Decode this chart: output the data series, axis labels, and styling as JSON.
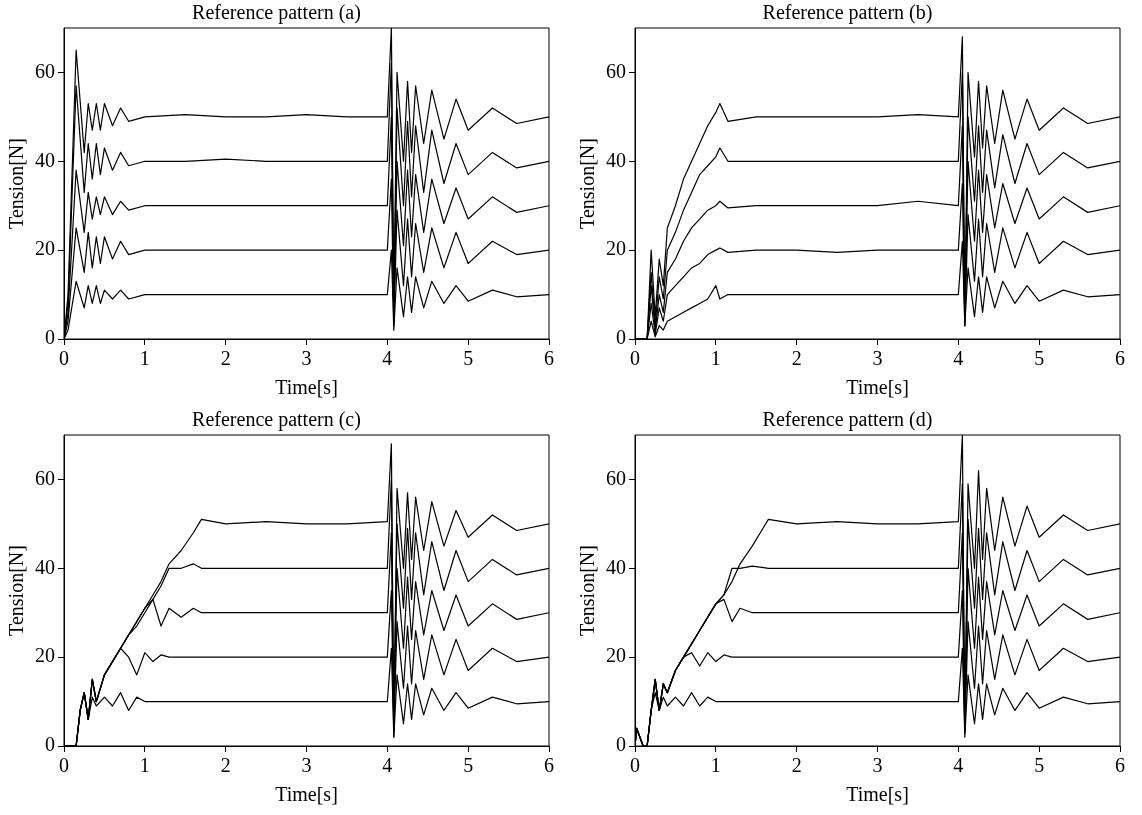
{
  "chart_data": [
    {
      "type": "line",
      "title": "Reference pattern (a)",
      "xlabel": "Time[s]",
      "ylabel": "Tension[N]",
      "xlim": [
        0,
        6
      ],
      "xticks": [
        0,
        1,
        2,
        3,
        4,
        5,
        6
      ],
      "ylim": [
        0,
        70
      ],
      "yticks": [
        0,
        20,
        40,
        60
      ],
      "x": [
        0,
        0.05,
        0.15,
        0.25,
        0.3,
        0.35,
        0.4,
        0.45,
        0.5,
        0.6,
        0.7,
        0.8,
        1.0,
        1.5,
        2.0,
        2.5,
        3.0,
        3.5,
        4.0,
        4.05,
        4.08,
        4.12,
        4.2,
        4.25,
        4.3,
        4.35,
        4.45,
        4.55,
        4.7,
        4.85,
        5.0,
        5.3,
        5.6,
        6.0
      ],
      "series": [
        {
          "color": "#000000",
          "values": [
            0,
            10,
            65,
            42,
            53,
            47,
            53,
            47,
            53,
            48,
            52,
            49,
            50,
            50.5,
            50,
            50,
            50.5,
            50,
            50,
            70,
            8,
            60,
            40,
            58,
            42,
            57,
            44,
            56,
            45,
            54,
            47,
            52,
            48.5,
            50
          ]
        },
        {
          "color": "#000000",
          "values": [
            0,
            8,
            57,
            33,
            44,
            36,
            44,
            37,
            43,
            38,
            42,
            39,
            40,
            40,
            40.5,
            40,
            40,
            40,
            40,
            62,
            5,
            52,
            30,
            49,
            32,
            48,
            33,
            47,
            35,
            44,
            37,
            42,
            38.5,
            40
          ]
        },
        {
          "color": "#000000",
          "values": [
            0,
            6,
            38,
            24,
            33,
            27,
            32,
            28,
            32,
            28,
            31,
            29,
            30,
            30,
            30,
            30,
            30,
            30,
            30,
            50,
            4,
            40,
            21,
            38,
            23,
            37,
            24,
            36,
            26,
            34,
            27,
            32,
            28.5,
            30
          ]
        },
        {
          "color": "#000000",
          "values": [
            0,
            4,
            25,
            15,
            24,
            16,
            23,
            17,
            23,
            18,
            22,
            19,
            20,
            20,
            20,
            20,
            20,
            20,
            20,
            36,
            3,
            29,
            12,
            27,
            14,
            26,
            15,
            25,
            16,
            24,
            17,
            22,
            19,
            20
          ]
        },
        {
          "color": "#000000",
          "values": [
            0,
            2,
            13,
            7,
            12,
            8,
            12,
            8,
            11,
            9,
            11,
            9,
            10,
            10,
            10,
            10,
            10,
            10,
            10,
            20,
            2,
            16,
            5,
            14,
            6,
            14,
            7,
            13,
            8,
            12,
            8.5,
            11,
            9.5,
            10
          ]
        }
      ]
    },
    {
      "type": "line",
      "title": "Reference pattern (b)",
      "xlabel": "Time[s]",
      "ylabel": "Tension[N]",
      "xlim": [
        0,
        6
      ],
      "xticks": [
        0,
        1,
        2,
        3,
        4,
        5,
        6
      ],
      "ylim": [
        0,
        70
      ],
      "yticks": [
        0,
        20,
        40,
        60
      ],
      "x": [
        0,
        0.15,
        0.2,
        0.25,
        0.3,
        0.35,
        0.4,
        0.5,
        0.6,
        0.7,
        0.8,
        0.9,
        1.0,
        1.05,
        1.15,
        1.5,
        2.0,
        2.5,
        3.0,
        3.5,
        4.0,
        4.05,
        4.08,
        4.12,
        4.2,
        4.25,
        4.3,
        4.35,
        4.45,
        4.55,
        4.7,
        4.85,
        5.0,
        5.3,
        5.6,
        6.0
      ],
      "series": [
        {
          "color": "#000000",
          "values": [
            0,
            0,
            20,
            5,
            18,
            12,
            25,
            30,
            36,
            40,
            44,
            48,
            51,
            53,
            49,
            50,
            50,
            50,
            50,
            50.5,
            50,
            68,
            3,
            60,
            41,
            58,
            43,
            57,
            44,
            56,
            45,
            54,
            47,
            52,
            48.5,
            50
          ]
        },
        {
          "color": "#000000",
          "values": [
            0,
            0,
            15,
            3,
            14,
            9,
            20,
            24,
            29,
            33,
            37,
            39,
            41,
            43,
            40,
            40,
            40,
            40,
            40,
            40,
            40,
            60,
            5,
            50,
            31,
            48,
            33,
            47,
            34,
            46,
            35,
            44,
            37,
            42,
            38.5,
            40
          ]
        },
        {
          "color": "#000000",
          "values": [
            0,
            0,
            12,
            2,
            10,
            6,
            15,
            18,
            22,
            25,
            27,
            29,
            30,
            31,
            29.5,
            30,
            30,
            30,
            30,
            31,
            30,
            48,
            4,
            40,
            22,
            38,
            24,
            37,
            25,
            35,
            26,
            34,
            27,
            32,
            28.5,
            30
          ]
        },
        {
          "color": "#000000",
          "values": [
            0,
            0,
            8,
            1,
            7,
            4,
            10,
            12,
            14,
            16,
            17,
            19,
            20,
            20.5,
            19.5,
            20,
            20,
            19.5,
            20,
            20,
            20,
            35,
            3,
            28,
            13,
            27,
            14,
            26,
            15,
            25,
            16,
            24,
            17,
            22,
            19,
            20
          ]
        },
        {
          "color": "#000000",
          "values": [
            0,
            0,
            4,
            0.5,
            3,
            2,
            4,
            5,
            6,
            7,
            8,
            9,
            12,
            9,
            10,
            10,
            10,
            10,
            10,
            10,
            10,
            22,
            3,
            16,
            5,
            14,
            6,
            14,
            7,
            13,
            8,
            12,
            8.5,
            11,
            9.5,
            10
          ]
        }
      ]
    },
    {
      "type": "line",
      "title": "Reference pattern (c)",
      "xlabel": "Time[s]",
      "ylabel": "Tension[N]",
      "xlim": [
        0,
        6
      ],
      "xticks": [
        0,
        1,
        2,
        3,
        4,
        5,
        6
      ],
      "ylim": [
        0,
        70
      ],
      "yticks": [
        0,
        20,
        40,
        60
      ],
      "x": [
        0,
        0.1,
        0.15,
        0.2,
        0.25,
        0.3,
        0.35,
        0.4,
        0.5,
        0.6,
        0.7,
        0.8,
        0.9,
        1.0,
        1.1,
        1.2,
        1.3,
        1.45,
        1.6,
        1.7,
        2.0,
        2.5,
        3.0,
        3.5,
        4.0,
        4.05,
        4.08,
        4.12,
        4.2,
        4.25,
        4.3,
        4.35,
        4.45,
        4.55,
        4.7,
        4.85,
        5.0,
        5.3,
        5.6,
        6.0
      ],
      "series": [
        {
          "color": "#000000",
          "values": [
            0,
            0,
            0,
            8,
            12,
            6,
            15,
            10,
            16,
            19,
            22,
            25,
            28,
            31,
            34,
            37,
            41,
            44,
            48,
            51,
            50,
            50.5,
            50,
            50,
            50.5,
            68,
            2,
            58,
            40,
            57,
            42,
            56,
            44,
            55,
            45,
            53,
            47,
            52,
            48.5,
            50
          ]
        },
        {
          "color": "#000000",
          "values": [
            0,
            0,
            0,
            8,
            12,
            6,
            15,
            10,
            16,
            19,
            22,
            25,
            28,
            31,
            33,
            36,
            40,
            40,
            41,
            40,
            40,
            40,
            40,
            40,
            40,
            60,
            5,
            50,
            31,
            49,
            33,
            48,
            34,
            46,
            35,
            44,
            37,
            42,
            38.5,
            40
          ]
        },
        {
          "color": "#000000",
          "values": [
            0,
            0,
            0,
            8,
            12,
            6,
            15,
            10,
            16,
            19,
            22,
            25,
            27,
            30,
            33,
            27,
            31,
            29,
            31,
            30,
            30,
            30,
            30,
            30,
            30,
            48,
            4,
            40,
            22,
            38,
            24,
            37,
            25,
            35,
            26,
            34,
            27,
            32,
            28.5,
            30
          ]
        },
        {
          "color": "#000000",
          "values": [
            0,
            0,
            0,
            8,
            12,
            6,
            15,
            10,
            16,
            19,
            22,
            20,
            16,
            21,
            19,
            20.5,
            20,
            20,
            20,
            20,
            20,
            20,
            20,
            20,
            20,
            35,
            3,
            28,
            13,
            27,
            14,
            26,
            15,
            25,
            16,
            24,
            17,
            22,
            19,
            20
          ]
        },
        {
          "color": "#000000",
          "values": [
            0,
            0,
            0,
            8,
            12,
            6,
            11,
            9,
            11,
            9,
            12,
            8,
            11,
            10,
            10,
            10,
            10,
            10,
            10,
            10,
            10,
            10,
            10,
            10,
            10,
            22,
            2,
            16,
            5,
            14,
            6,
            14,
            7,
            13,
            8,
            12,
            8.5,
            11,
            9.5,
            10
          ]
        }
      ]
    },
    {
      "type": "line",
      "title": "Reference pattern (d)",
      "xlabel": "Time[s]",
      "ylabel": "Tension[N]",
      "xlim": [
        0,
        6
      ],
      "xticks": [
        0,
        1,
        2,
        3,
        4,
        5,
        6
      ],
      "ylim": [
        0,
        70
      ],
      "yticks": [
        0,
        20,
        40,
        60
      ],
      "x": [
        0,
        0.02,
        0.1,
        0.15,
        0.2,
        0.25,
        0.3,
        0.35,
        0.4,
        0.5,
        0.6,
        0.7,
        0.8,
        0.9,
        1.0,
        1.1,
        1.2,
        1.3,
        1.45,
        1.65,
        2.0,
        2.5,
        3.0,
        3.5,
        4.0,
        4.05,
        4.08,
        4.12,
        4.2,
        4.25,
        4.3,
        4.35,
        4.45,
        4.55,
        4.7,
        4.85,
        5.0,
        5.3,
        5.6,
        6.0
      ],
      "series": [
        {
          "color": "#000000",
          "values": [
            0,
            4,
            0,
            0,
            8,
            15,
            8,
            14,
            12,
            17,
            20,
            23,
            26,
            29,
            32,
            34,
            37,
            41,
            45,
            51,
            50,
            50.5,
            50,
            50,
            50.5,
            70,
            3,
            59,
            40,
            62,
            42,
            58,
            44,
            56,
            45,
            54,
            47,
            52,
            48.5,
            50
          ]
        },
        {
          "color": "#000000",
          "values": [
            0,
            4,
            0,
            0,
            8,
            15,
            8,
            14,
            12,
            17,
            20,
            23,
            26,
            29,
            32,
            34,
            40,
            40,
            40.5,
            40,
            40,
            40,
            40,
            40,
            40,
            59,
            4,
            51,
            31,
            49,
            33,
            48,
            34,
            46,
            35,
            44,
            37,
            42,
            38.5,
            40
          ]
        },
        {
          "color": "#000000",
          "values": [
            0,
            4,
            0,
            0,
            8,
            15,
            8,
            14,
            12,
            17,
            20,
            23,
            26,
            29,
            32,
            33,
            28,
            31,
            30,
            30,
            30,
            30,
            30,
            30,
            30,
            48,
            4,
            40,
            22,
            38,
            24,
            37,
            25,
            35,
            26,
            34,
            27,
            32,
            28.5,
            30
          ]
        },
        {
          "color": "#000000",
          "values": [
            0,
            4,
            0,
            0,
            8,
            15,
            8,
            14,
            12,
            17,
            20,
            21,
            18,
            21,
            19,
            20.5,
            20,
            20,
            20,
            20,
            20,
            20,
            20,
            20,
            20,
            35,
            3,
            28,
            13,
            27,
            14,
            26,
            15,
            25,
            16,
            24,
            17,
            22,
            19,
            20
          ]
        },
        {
          "color": "#000000",
          "values": [
            0,
            4,
            0,
            0,
            8,
            12,
            8,
            11,
            9,
            11,
            9,
            12,
            9,
            11,
            10,
            10,
            10,
            10,
            10,
            10,
            10,
            10,
            10,
            10,
            10,
            22,
            2,
            16,
            5,
            14,
            6,
            14,
            7,
            13,
            8,
            12,
            8.5,
            11,
            9.5,
            10
          ]
        }
      ]
    }
  ]
}
